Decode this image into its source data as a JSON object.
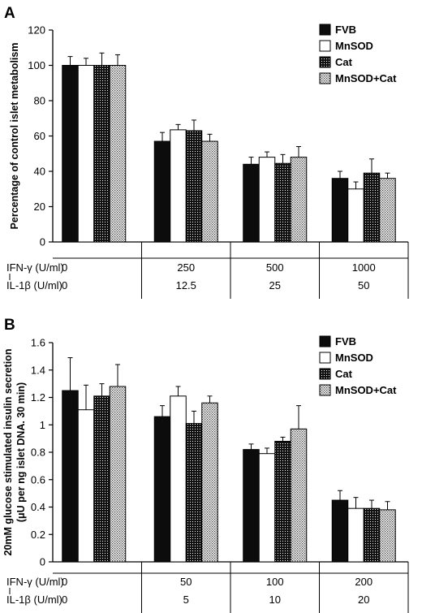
{
  "legend_labels": [
    "FVB",
    "MnSOD",
    "Cat",
    "MnSOD+Cat"
  ],
  "chart_data": [
    {
      "type": "bar",
      "panel_label": "A",
      "ylabel": "Percentage of control islet metabolism",
      "ylabel_line2": "",
      "ylim": [
        0,
        120
      ],
      "yticks": [
        0,
        20,
        40,
        60,
        80,
        100,
        120
      ],
      "row_labels": [
        "IFN-γ (U/ml)",
        "IL-1β (U/ml)"
      ],
      "groups": [
        {
          "ifn": "0",
          "il": "0"
        },
        {
          "ifn": "250",
          "il": "12.5"
        },
        {
          "ifn": "500",
          "il": "25"
        },
        {
          "ifn": "1000",
          "il": "50"
        }
      ],
      "series": [
        {
          "name": "FVB",
          "values": [
            100,
            57,
            44,
            36
          ],
          "errors": [
            5,
            5,
            4,
            4
          ]
        },
        {
          "name": "MnSOD",
          "values": [
            100,
            63.5,
            48,
            30
          ],
          "errors": [
            4,
            3,
            3,
            4
          ]
        },
        {
          "name": "Cat",
          "values": [
            100,
            63,
            44.5,
            39
          ],
          "errors": [
            7,
            6,
            5,
            8
          ]
        },
        {
          "name": "MnSOD+Cat",
          "values": [
            100,
            57,
            48,
            36
          ],
          "errors": [
            6,
            4,
            6,
            3
          ]
        }
      ]
    },
    {
      "type": "bar",
      "panel_label": "B",
      "ylabel": "20mM glucose stimulated insulin secretion",
      "ylabel_line2": "(μU per ng islet DNA. 30 min)",
      "ylim": [
        0,
        1.6
      ],
      "yticks": [
        0,
        0.2,
        0.4,
        0.6,
        0.8,
        1,
        1.2,
        1.4,
        1.6
      ],
      "row_labels": [
        "IFN-γ (U/ml)",
        "IL-1β (U/ml)"
      ],
      "groups": [
        {
          "ifn": "0",
          "il": "0"
        },
        {
          "ifn": "50",
          "il": "5"
        },
        {
          "ifn": "100",
          "il": "10"
        },
        {
          "ifn": "200",
          "il": "20"
        }
      ],
      "series": [
        {
          "name": "FVB",
          "values": [
            1.25,
            1.06,
            0.82,
            0.45
          ],
          "errors": [
            0.24,
            0.08,
            0.04,
            0.07
          ]
        },
        {
          "name": "MnSOD",
          "values": [
            1.11,
            1.21,
            0.79,
            0.39
          ],
          "errors": [
            0.18,
            0.07,
            0.04,
            0.08
          ]
        },
        {
          "name": "Cat",
          "values": [
            1.21,
            1.01,
            0.88,
            0.39
          ],
          "errors": [
            0.09,
            0.09,
            0.03,
            0.06
          ]
        },
        {
          "name": "MnSOD+Cat",
          "values": [
            1.28,
            1.16,
            0.97,
            0.38
          ],
          "errors": [
            0.16,
            0.05,
            0.17,
            0.06
          ]
        }
      ]
    }
  ]
}
